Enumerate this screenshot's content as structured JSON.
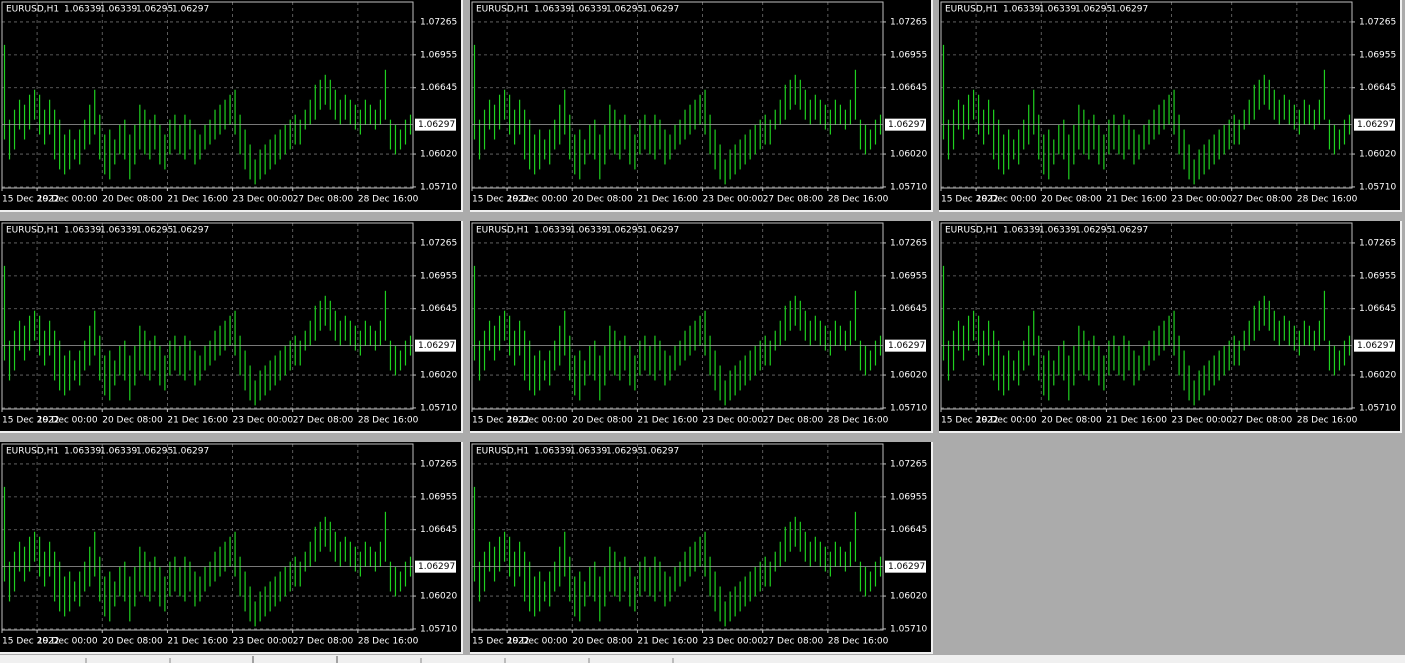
{
  "chart_data": {
    "type": "bar",
    "title": "EURUSD,H1",
    "ohlc": [
      1.06339,
      1.06339,
      1.06295,
      1.06297
    ],
    "last_price": 1.06297,
    "color": "#1fd01f",
    "grid": true,
    "ylim": [
      1.057,
      1.07453
    ],
    "yticks": [
      {
        "value": 1.0571,
        "label": "1.05710"
      },
      {
        "value": 1.0602,
        "label": "1.06020"
      },
      1.06645,
      1.06955,
      1.07265
    ],
    "xlim": [
      0,
      82
    ],
    "xticks": [
      {
        "value": 0,
        "label": "15 Dec 2022"
      },
      {
        "value": 7,
        "label": "19 Dec 00:00"
      },
      {
        "value": 20,
        "label": "20 Dec 08:00"
      },
      {
        "value": 33,
        "label": "21 Dec 16:00"
      },
      {
        "value": 46,
        "label": "23 Dec 00:00"
      },
      {
        "value": 58,
        "label": "27 Dec 08:00"
      },
      {
        "value": 71,
        "label": "28 Dec 16:00"
      }
    ],
    "high": [
      1.07049,
      1.06344,
      1.06438,
      1.06532,
      1.06485,
      1.06579,
      1.06626,
      1.06579,
      1.06438,
      1.06532,
      1.06438,
      1.06344,
      1.06204,
      1.06251,
      1.06157,
      1.06251,
      1.06344,
      1.06485,
      1.06626,
      1.06391,
      1.06204,
      1.06251,
      1.06157,
      1.06298,
      1.06344,
      1.06204,
      1.06298,
      1.06485,
      1.06438,
      1.06344,
      1.06391,
      1.06298,
      1.06204,
      1.06344,
      1.06391,
      1.06298,
      1.06391,
      1.06344,
      1.06251,
      1.06204,
      1.06298,
      1.06344,
      1.06438,
      1.06485,
      1.06532,
      1.06579,
      1.06626,
      1.06391,
      1.06251,
      1.0611,
      1.05969,
      1.06063,
      1.0611,
      1.06157,
      1.06204,
      1.06251,
      1.06298,
      1.06344,
      1.06391,
      1.06344,
      1.06438,
      1.06532,
      1.06673,
      1.0672,
      1.06767,
      1.0672,
      1.06626,
      1.06532,
      1.06579,
      1.06532,
      1.06485,
      1.06438,
      1.06532,
      1.06485,
      1.06438,
      1.06532,
      1.06814,
      1.06344,
      1.06298,
      1.06251,
      1.06344,
      1.06391
    ],
    "low": [
      1.06157,
      1.05969,
      1.06063,
      1.06251,
      1.06157,
      1.06251,
      1.06344,
      1.06204,
      1.0611,
      1.06204,
      1.05969,
      1.05875,
      1.05828,
      1.05875,
      1.05969,
      1.05922,
      1.06063,
      1.0611,
      1.06204,
      1.05969,
      1.05828,
      1.05781,
      1.05922,
      1.06016,
      1.05969,
      1.05781,
      1.05922,
      1.06063,
      1.06016,
      1.05969,
      1.06063,
      1.05922,
      1.05875,
      1.06016,
      1.06063,
      1.06016,
      1.05969,
      1.06063,
      1.05922,
      1.05969,
      1.06063,
      1.0611,
      1.06157,
      1.06204,
      1.06251,
      1.06298,
      1.06204,
      1.06016,
      1.05875,
      1.05781,
      1.05734,
      1.05781,
      1.05828,
      1.05875,
      1.05922,
      1.05969,
      1.06016,
      1.06063,
      1.0611,
      1.0611,
      1.06251,
      1.06298,
      1.06344,
      1.06438,
      1.06485,
      1.06438,
      1.06344,
      1.06298,
      1.06344,
      1.06298,
      1.06251,
      1.06204,
      1.06298,
      1.06298,
      1.06251,
      1.06298,
      1.06344,
      1.06063,
      1.06016,
      1.06063,
      1.0611,
      1.06204
    ]
  }
}
